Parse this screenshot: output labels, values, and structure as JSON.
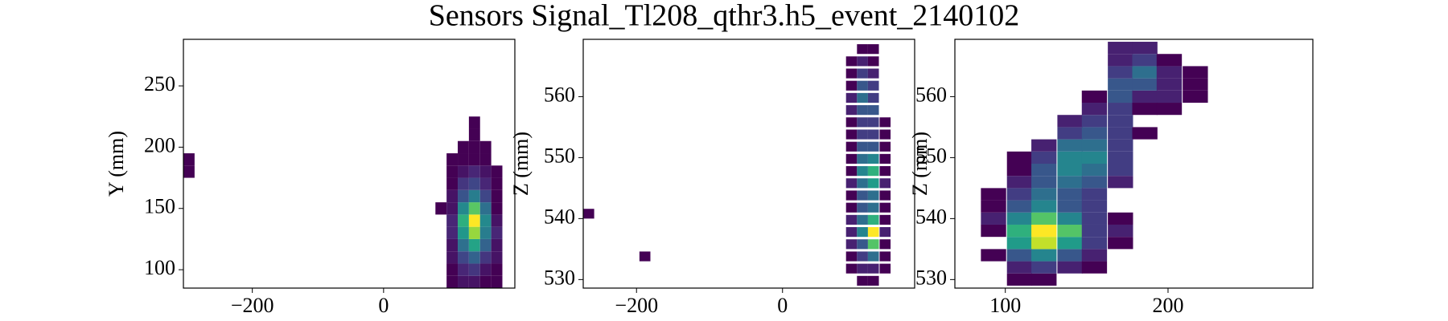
{
  "chart_data": [
    {
      "type": "heatmap",
      "title": "Sensors Signal_Tl208_qthr3.h5_event_2140102",
      "ylabel": "Y (mm)",
      "xlim": [
        -305,
        200
      ],
      "ylim": [
        85,
        288
      ],
      "xticks": [
        {
          "value": -200,
          "label": "−200"
        },
        0
      ],
      "yticks": [
        100,
        150,
        200,
        250
      ],
      "cell_width": 17,
      "cell_height": 10,
      "cells": [
        [
          -305,
          175,
          1
        ],
        [
          -305,
          185,
          1
        ],
        [
          79,
          145,
          1
        ],
        [
          96,
          85,
          1
        ],
        [
          96,
          95,
          1
        ],
        [
          96,
          105,
          2
        ],
        [
          96,
          115,
          2
        ],
        [
          96,
          125,
          3
        ],
        [
          96,
          135,
          3
        ],
        [
          96,
          145,
          2
        ],
        [
          96,
          155,
          2
        ],
        [
          96,
          165,
          1
        ],
        [
          96,
          175,
          1
        ],
        [
          96,
          185,
          1
        ],
        [
          113,
          85,
          2
        ],
        [
          113,
          95,
          3
        ],
        [
          113,
          105,
          5
        ],
        [
          113,
          115,
          8
        ],
        [
          113,
          125,
          11
        ],
        [
          113,
          135,
          13
        ],
        [
          113,
          145,
          10
        ],
        [
          113,
          155,
          6
        ],
        [
          113,
          165,
          4
        ],
        [
          113,
          175,
          2
        ],
        [
          113,
          185,
          1
        ],
        [
          113,
          195,
          1
        ],
        [
          130,
          85,
          2
        ],
        [
          130,
          95,
          4
        ],
        [
          130,
          105,
          7
        ],
        [
          130,
          115,
          12
        ],
        [
          130,
          125,
          17
        ],
        [
          130,
          135,
          20
        ],
        [
          130,
          145,
          15
        ],
        [
          130,
          155,
          9
        ],
        [
          130,
          165,
          5
        ],
        [
          130,
          175,
          3
        ],
        [
          130,
          185,
          1
        ],
        [
          130,
          195,
          1
        ],
        [
          130,
          205,
          1
        ],
        [
          130,
          215,
          1
        ],
        [
          147,
          85,
          1
        ],
        [
          147,
          95,
          2
        ],
        [
          147,
          105,
          4
        ],
        [
          147,
          115,
          7
        ],
        [
          147,
          125,
          9
        ],
        [
          147,
          135,
          10
        ],
        [
          147,
          145,
          8
        ],
        [
          147,
          155,
          5
        ],
        [
          147,
          165,
          3
        ],
        [
          147,
          175,
          2
        ],
        [
          147,
          185,
          1
        ],
        [
          147,
          195,
          1
        ],
        [
          164,
          85,
          1
        ],
        [
          164,
          95,
          1
        ],
        [
          164,
          105,
          2
        ],
        [
          164,
          115,
          2
        ],
        [
          164,
          125,
          3
        ],
        [
          164,
          135,
          2
        ],
        [
          164,
          145,
          1
        ],
        [
          164,
          155,
          1
        ],
        [
          164,
          165,
          1
        ],
        [
          164,
          175,
          1
        ]
      ]
    },
    {
      "type": "heatmap",
      "ylabel": "Z (mm)",
      "xlim": [
        -273,
        181
      ],
      "ylim": [
        528.6,
        569.4
      ],
      "xticks": [
        {
          "value": -200,
          "label": "−200"
        },
        0
      ],
      "yticks": [
        530,
        540,
        550,
        560
      ],
      "cell_width": 15,
      "cell_height": 1.6,
      "cells": [
        [
          -273,
          540,
          1
        ],
        [
          -196,
          533,
          1
        ],
        [
          87,
          531,
          1
        ],
        [
          87,
          533,
          1
        ],
        [
          87,
          535,
          2
        ],
        [
          87,
          537,
          2
        ],
        [
          87,
          539,
          2
        ],
        [
          87,
          541,
          1
        ],
        [
          87,
          543,
          1
        ],
        [
          87,
          545,
          2
        ],
        [
          87,
          547,
          1
        ],
        [
          87,
          549,
          1
        ],
        [
          87,
          551,
          1
        ],
        [
          87,
          553,
          1
        ],
        [
          87,
          555,
          1
        ],
        [
          87,
          557,
          2
        ],
        [
          87,
          559,
          2
        ],
        [
          87,
          561,
          1
        ],
        [
          87,
          563,
          1
        ],
        [
          87,
          565,
          1
        ],
        [
          102,
          529,
          1
        ],
        [
          102,
          531,
          2
        ],
        [
          102,
          533,
          3
        ],
        [
          102,
          535,
          4
        ],
        [
          102,
          537,
          6
        ],
        [
          102,
          539,
          5
        ],
        [
          102,
          541,
          4
        ],
        [
          102,
          543,
          4
        ],
        [
          102,
          545,
          5
        ],
        [
          102,
          547,
          6
        ],
        [
          102,
          549,
          5
        ],
        [
          102,
          551,
          4
        ],
        [
          102,
          553,
          3
        ],
        [
          102,
          555,
          3
        ],
        [
          102,
          557,
          4
        ],
        [
          102,
          559,
          5
        ],
        [
          102,
          561,
          4
        ],
        [
          102,
          563,
          3
        ],
        [
          102,
          565,
          2
        ],
        [
          102,
          567,
          1
        ],
        [
          117,
          529,
          1
        ],
        [
          117,
          531,
          2
        ],
        [
          117,
          533,
          5
        ],
        [
          117,
          535,
          9
        ],
        [
          117,
          537,
          12
        ],
        [
          117,
          539,
          8
        ],
        [
          117,
          541,
          5
        ],
        [
          117,
          543,
          5
        ],
        [
          117,
          545,
          7
        ],
        [
          117,
          547,
          8
        ],
        [
          117,
          549,
          6
        ],
        [
          117,
          551,
          4
        ],
        [
          117,
          553,
          3
        ],
        [
          117,
          555,
          3
        ],
        [
          117,
          557,
          4
        ],
        [
          117,
          559,
          3
        ],
        [
          117,
          561,
          3
        ],
        [
          117,
          563,
          2
        ],
        [
          117,
          565,
          1
        ],
        [
          117,
          567,
          1
        ],
        [
          133,
          531,
          1
        ],
        [
          133,
          533,
          1
        ],
        [
          133,
          535,
          1
        ],
        [
          133,
          537,
          2
        ],
        [
          133,
          539,
          1
        ],
        [
          133,
          541,
          1
        ],
        [
          133,
          543,
          1
        ],
        [
          133,
          545,
          2
        ],
        [
          133,
          547,
          1
        ],
        [
          133,
          549,
          1
        ],
        [
          133,
          551,
          1
        ],
        [
          133,
          553,
          1
        ],
        [
          133,
          555,
          1
        ]
      ]
    },
    {
      "type": "heatmap",
      "ylabel": "Z (mm)",
      "xlim": [
        69,
        289
      ],
      "ylim": [
        528.6,
        569.4
      ],
      "xticks": [
        100,
        200
      ],
      "yticks": [
        530,
        540,
        550,
        560
      ],
      "cell_width": 15.5,
      "cell_height": 2,
      "cells": [
        [
          85,
          533,
          1
        ],
        [
          85,
          537,
          1
        ],
        [
          85,
          539,
          2
        ],
        [
          85,
          541,
          1
        ],
        [
          85,
          543,
          1
        ],
        [
          101,
          529,
          1
        ],
        [
          101,
          531,
          2
        ],
        [
          101,
          533,
          4
        ],
        [
          101,
          535,
          7
        ],
        [
          101,
          537,
          8
        ],
        [
          101,
          539,
          6
        ],
        [
          101,
          541,
          4
        ],
        [
          101,
          543,
          3
        ],
        [
          101,
          545,
          2
        ],
        [
          101,
          547,
          1
        ],
        [
          101,
          549,
          1
        ],
        [
          116,
          529,
          1
        ],
        [
          116,
          531,
          3
        ],
        [
          116,
          533,
          6
        ],
        [
          116,
          535,
          11
        ],
        [
          116,
          537,
          12
        ],
        [
          116,
          539,
          9
        ],
        [
          116,
          541,
          6
        ],
        [
          116,
          543,
          5
        ],
        [
          116,
          545,
          4
        ],
        [
          116,
          547,
          4
        ],
        [
          116,
          549,
          3
        ],
        [
          116,
          551,
          2
        ],
        [
          132,
          531,
          2
        ],
        [
          132,
          533,
          4
        ],
        [
          132,
          535,
          7
        ],
        [
          132,
          537,
          9
        ],
        [
          132,
          539,
          6
        ],
        [
          132,
          541,
          4
        ],
        [
          132,
          543,
          4
        ],
        [
          132,
          545,
          5
        ],
        [
          132,
          547,
          6
        ],
        [
          132,
          549,
          6
        ],
        [
          132,
          551,
          5
        ],
        [
          132,
          553,
          3
        ],
        [
          132,
          555,
          2
        ],
        [
          147,
          531,
          1
        ],
        [
          147,
          533,
          2
        ],
        [
          147,
          535,
          3
        ],
        [
          147,
          537,
          3
        ],
        [
          147,
          539,
          3
        ],
        [
          147,
          541,
          3
        ],
        [
          147,
          543,
          3
        ],
        [
          147,
          545,
          4
        ],
        [
          147,
          547,
          5
        ],
        [
          147,
          549,
          6
        ],
        [
          147,
          551,
          5
        ],
        [
          147,
          553,
          4
        ],
        [
          147,
          555,
          3
        ],
        [
          147,
          557,
          2
        ],
        [
          147,
          559,
          1
        ],
        [
          163,
          535,
          1
        ],
        [
          163,
          537,
          2
        ],
        [
          163,
          539,
          1
        ],
        [
          163,
          545,
          2
        ],
        [
          163,
          547,
          3
        ],
        [
          163,
          549,
          3
        ],
        [
          163,
          551,
          3
        ],
        [
          163,
          553,
          3
        ],
        [
          163,
          555,
          3
        ],
        [
          163,
          557,
          3
        ],
        [
          163,
          559,
          4
        ],
        [
          163,
          561,
          4
        ],
        [
          163,
          563,
          3
        ],
        [
          163,
          565,
          2
        ],
        [
          163,
          567,
          2
        ],
        [
          178,
          553,
          1
        ],
        [
          178,
          557,
          1
        ],
        [
          178,
          559,
          2
        ],
        [
          178,
          561,
          4
        ],
        [
          178,
          563,
          5
        ],
        [
          178,
          565,
          3
        ],
        [
          178,
          567,
          2
        ],
        [
          193,
          557,
          1
        ],
        [
          193,
          559,
          2
        ],
        [
          193,
          561,
          2
        ],
        [
          193,
          563,
          2
        ],
        [
          193,
          565,
          1
        ],
        [
          209,
          559,
          1
        ],
        [
          209,
          561,
          1
        ],
        [
          209,
          563,
          1
        ]
      ]
    }
  ]
}
